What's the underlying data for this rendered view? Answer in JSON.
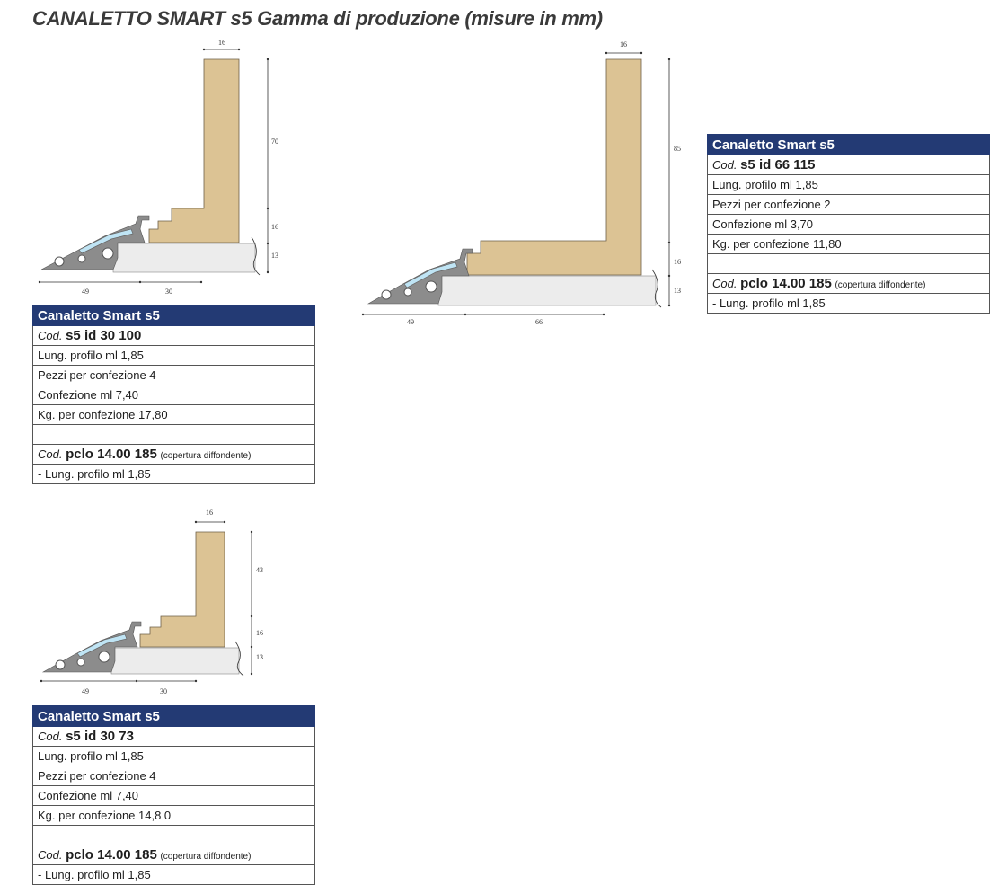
{
  "page": {
    "title": "CANALETTO SMART s5 Gamma di produzione  (misure in mm)"
  },
  "colors": {
    "header_bg": "#233a74",
    "wood": "#dcc394",
    "profile": "#8c8c8c",
    "base": "#ececec",
    "cover": "#bfe4f4"
  },
  "products": [
    {
      "name": "Canaletto Smart s5",
      "cod_prefix": "Cod.",
      "code": "s5 id 30 100",
      "rows": [
        "Lung. profilo ml 1,85",
        "Pezzi per confezione 4",
        "Confezione ml 7,40",
        "Kg. per confezione 17,80"
      ],
      "cover_prefix": "Cod.",
      "cover_code": "pclo 14.00 185",
      "cover_note": "(copertura diffondente)",
      "cover_length": "-  Lung. profilo ml 1,85",
      "dims": {
        "top": "16",
        "h1": "70",
        "h2": "16",
        "h3": "13",
        "b1": "49",
        "b2": "30"
      }
    },
    {
      "name": "Canaletto Smart s5",
      "cod_prefix": "Cod.",
      "code": "s5 id 66 115",
      "rows": [
        "Lung. profilo ml 1,85",
        "Pezzi per confezione 2",
        "Confezione ml 3,70",
        "Kg. per confezione 11,80"
      ],
      "cover_prefix": "Cod.",
      "cover_code": "pclo 14.00 185",
      "cover_note": "(copertura diffondente)",
      "cover_length": "-  Lung. profilo ml 1,85",
      "dims": {
        "top": "16",
        "h1": "85",
        "h2": "16",
        "h3": "13",
        "b1": "49",
        "b2": "66"
      }
    },
    {
      "name": "Canaletto Smart s5",
      "cod_prefix": "Cod.",
      "code": "s5 id 30 73",
      "rows": [
        "Lung. profilo ml 1,85",
        "Pezzi per confezione 4",
        "Confezione ml 7,40",
        "Kg. per confezione 14,8 0"
      ],
      "cover_prefix": "Cod.",
      "cover_code": "pclo 14.00 185",
      "cover_note": "(copertura diffondente)",
      "cover_length": "- Lung. profilo ml 1,85",
      "dims": {
        "top": "16",
        "h1": "43",
        "h2": "16",
        "h3": "13",
        "b1": "49",
        "b2": "30"
      }
    }
  ]
}
